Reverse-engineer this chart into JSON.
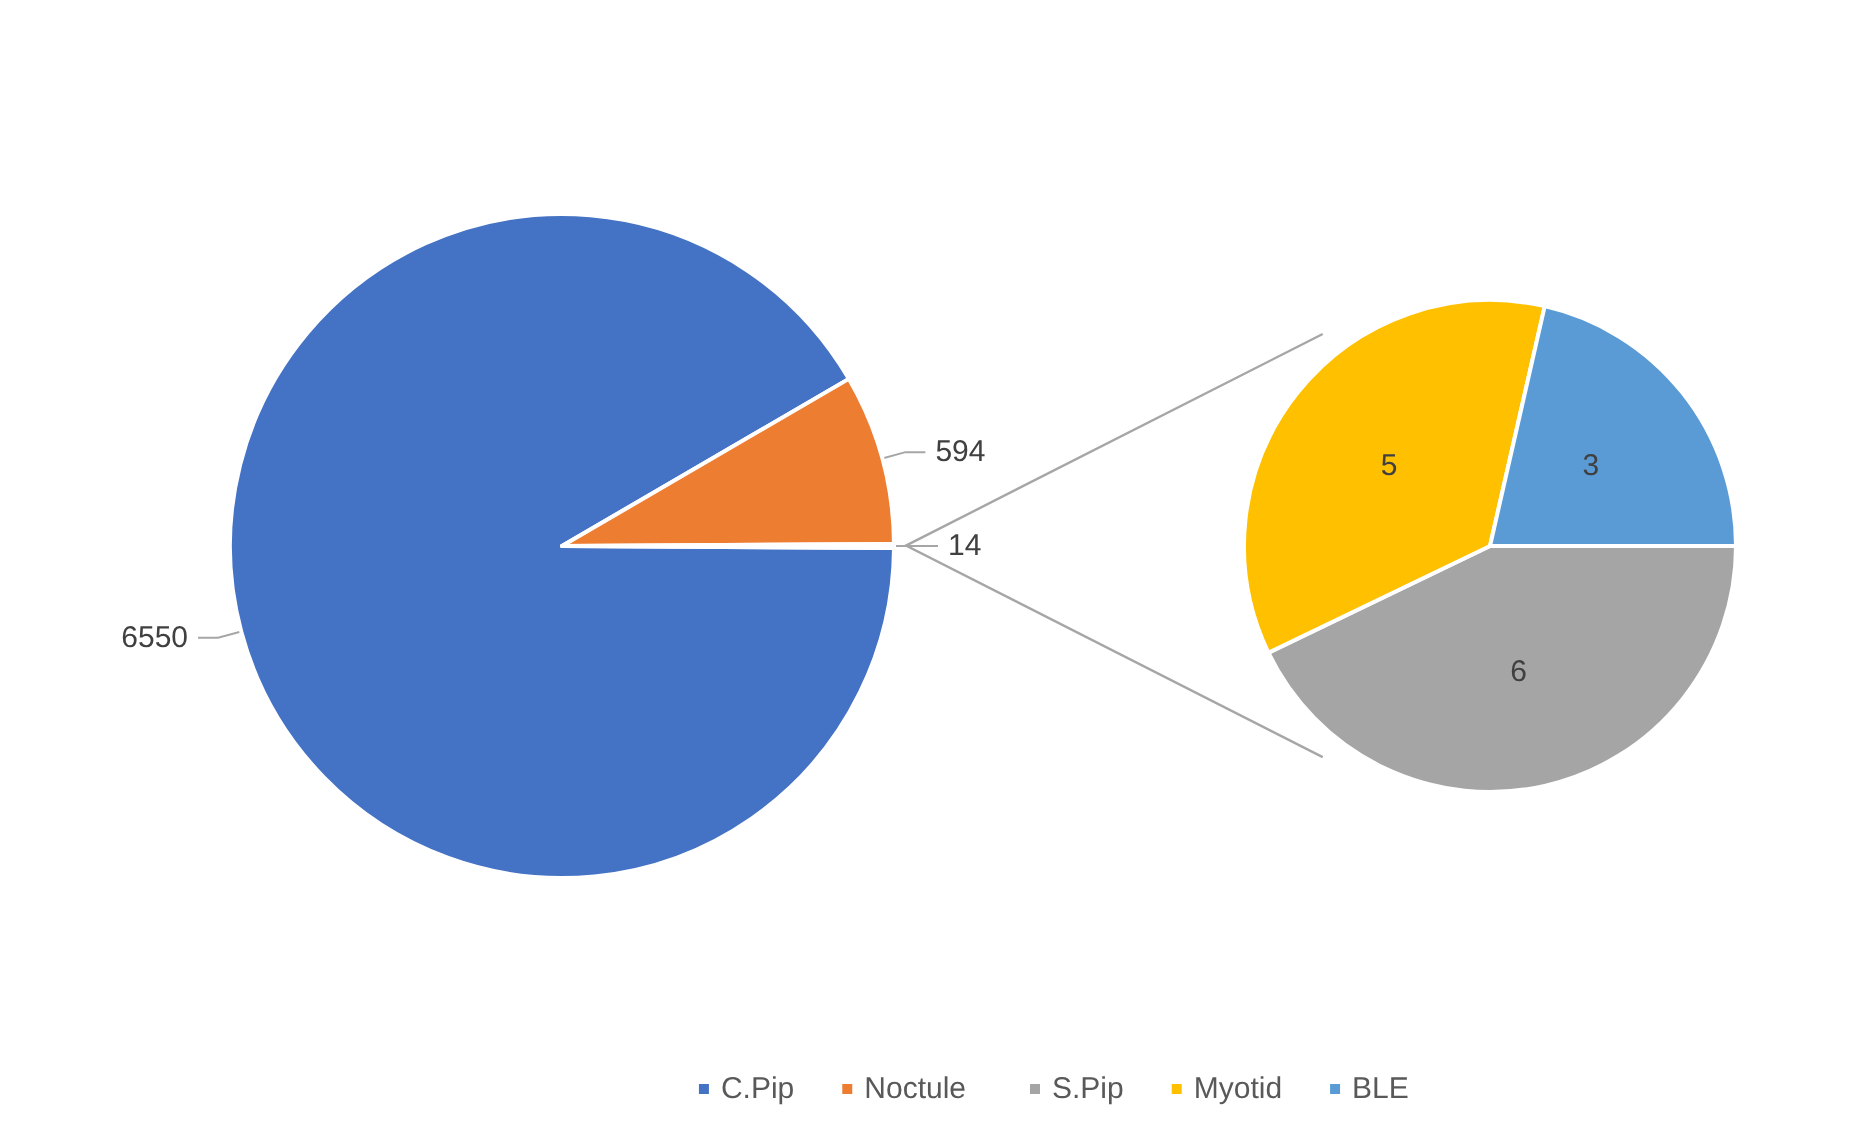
{
  "chart_data": [
    {
      "type": "pie",
      "categories": [
        "C.Pip",
        "Noctule",
        null
      ],
      "values": [
        6550,
        594,
        14
      ],
      "colors": [
        "#4472c4",
        "#ed7d31",
        "#d9d9d9"
      ],
      "data_labels": true,
      "legend": "bottom"
    },
    {
      "type": "pie",
      "categories": [
        "S.Pip",
        "Myotid",
        "BLE"
      ],
      "values": [
        6,
        5,
        3
      ],
      "colors": [
        "#a5a5a5",
        "#ffc000",
        "#5b9bd5"
      ],
      "data_labels": true,
      "legend": "bottom"
    }
  ]
}
